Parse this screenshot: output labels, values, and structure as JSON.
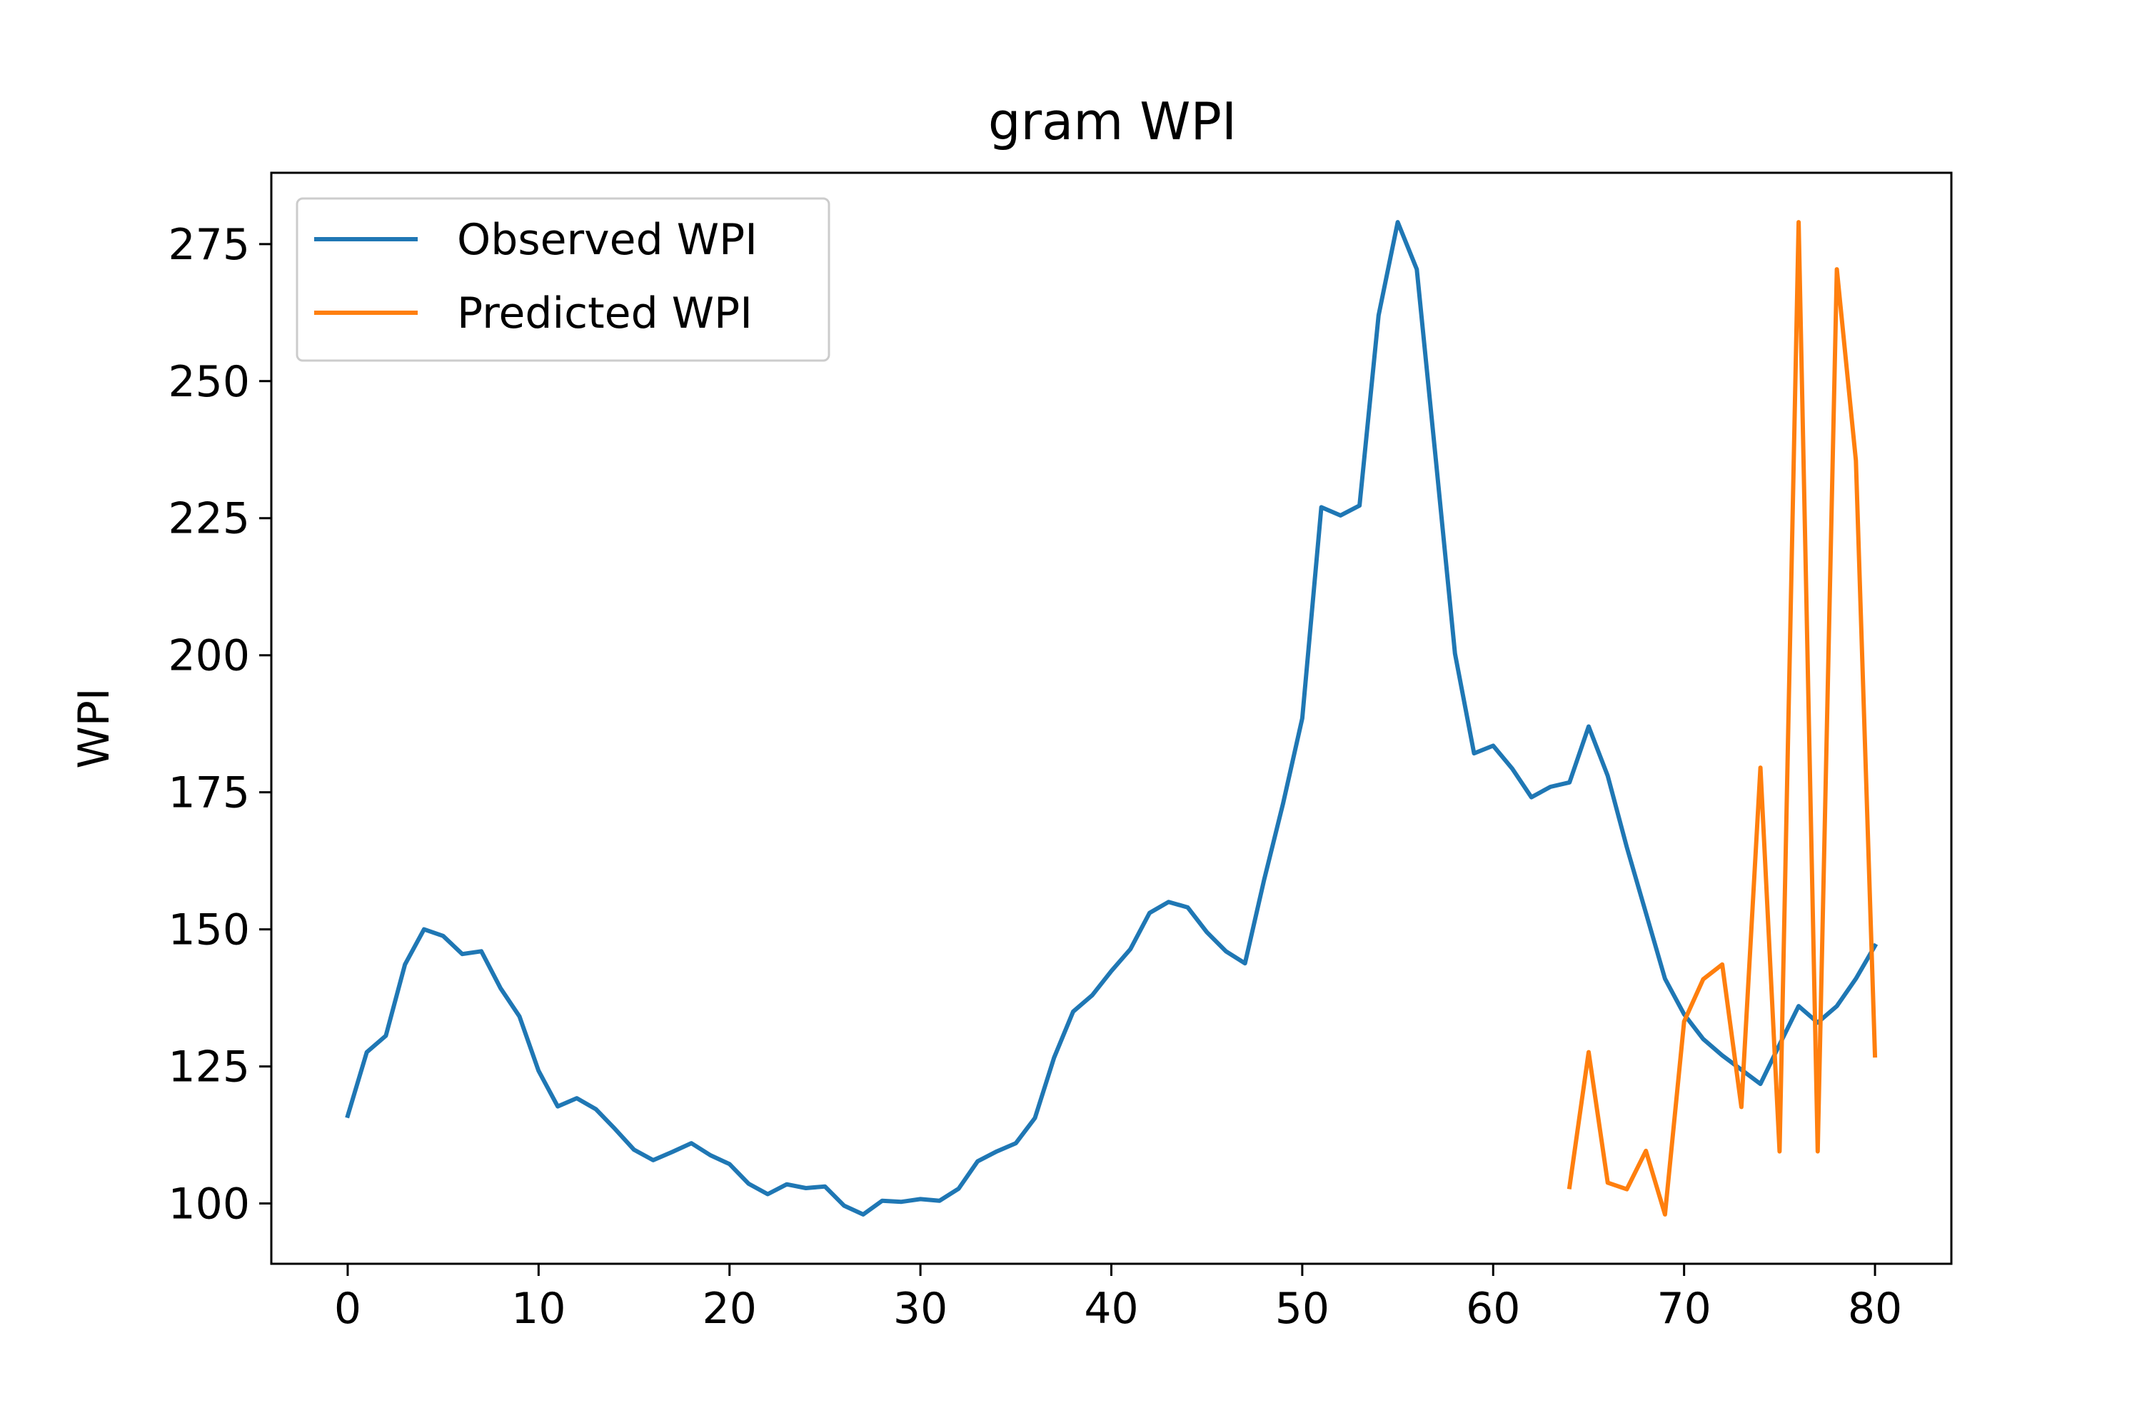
{
  "chart_data": {
    "type": "line",
    "title": "gram WPI",
    "xlabel": "",
    "ylabel": "WPI",
    "xlim": [
      -4,
      84
    ],
    "ylim": [
      89,
      288
    ],
    "xticks": [
      0,
      10,
      20,
      30,
      40,
      50,
      60,
      70,
      80
    ],
    "yticks": [
      100,
      125,
      150,
      175,
      200,
      225,
      250,
      275
    ],
    "grid": false,
    "legend_position": "upper-left",
    "series": [
      {
        "name": "Observed WPI",
        "color": "#1f77b4",
        "x": [
          0,
          1,
          2,
          3,
          4,
          5,
          6,
          7,
          8,
          9,
          10,
          11,
          12,
          13,
          14,
          15,
          16,
          17,
          18,
          19,
          20,
          21,
          22,
          23,
          24,
          25,
          26,
          27,
          28,
          29,
          30,
          31,
          32,
          33,
          34,
          35,
          36,
          37,
          38,
          39,
          40,
          41,
          42,
          43,
          44,
          45,
          46,
          47,
          48,
          49,
          50,
          51,
          52,
          53,
          54,
          55,
          56,
          57,
          58,
          59,
          60,
          61,
          62,
          63,
          64,
          65,
          66,
          67,
          68,
          69,
          70,
          71,
          72,
          73,
          74,
          75,
          76,
          77,
          78,
          79,
          80
        ],
        "y": [
          116,
          127.6,
          130.6,
          143.6,
          150,
          148.8,
          145.5,
          146,
          139.3,
          134.1,
          124.2,
          117.7,
          119.2,
          117.2,
          113.6,
          109.8,
          107.9,
          109.4,
          111,
          108.8,
          107.2,
          103.6,
          101.7,
          103.5,
          102.8,
          103.1,
          99.6,
          98,
          100.5,
          100.3,
          100.8,
          100.5,
          102.7,
          107.7,
          109.5,
          111,
          115.6,
          126.6,
          135,
          138,
          142.4,
          146.4,
          153,
          155,
          154,
          149.5,
          146,
          143.8,
          159,
          173,
          188.5,
          227,
          225.5,
          227.3,
          262,
          279,
          270.4,
          235.5,
          200.3,
          182.1,
          183.5,
          179.3,
          174.1,
          176,
          176.8,
          187,
          178,
          165,
          153,
          141,
          134.5,
          130,
          127,
          124.4,
          121.8,
          129,
          136,
          133,
          136,
          141,
          147
        ]
      },
      {
        "name": "Predicted WPI",
        "color": "#ff7f0e",
        "x": [
          64,
          65,
          66,
          67,
          68,
          69,
          70,
          71,
          72,
          73,
          74,
          75,
          76,
          77,
          78,
          79,
          80
        ],
        "y": [
          103,
          127.6,
          103.8,
          102.6,
          109.6,
          98,
          133.2,
          140.9,
          143.6,
          117.6,
          179.5,
          109.5,
          279,
          109.5,
          270.4,
          235.5,
          127
        ]
      }
    ]
  }
}
